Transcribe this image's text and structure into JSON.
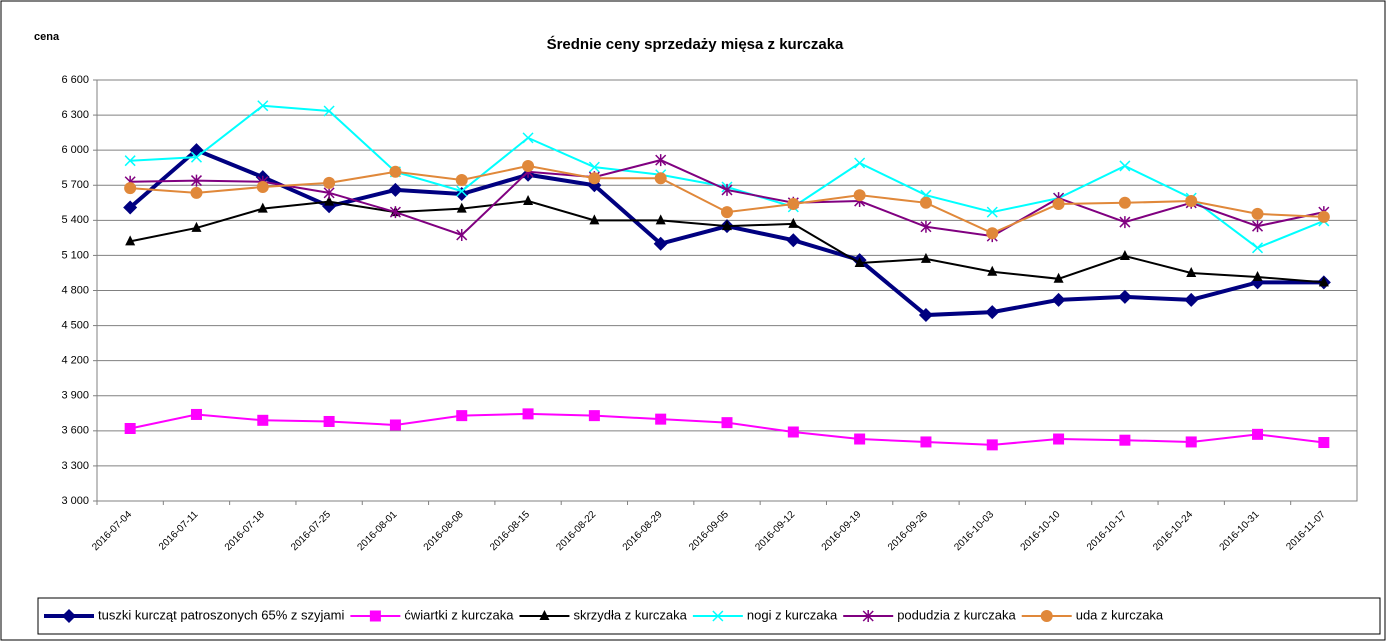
{
  "chart_data": {
    "type": "line",
    "title": "Średnie ceny sprzedaży mięsa z kurczaka",
    "y_label": "cena",
    "categories": [
      "2016-07-04",
      "2016-07-11",
      "2016-07-18",
      "2016-07-25",
      "2016-08-01",
      "2016-08-08",
      "2016-08-15",
      "2016-08-22",
      "2016-08-29",
      "2016-09-05",
      "2016-09-12",
      "2016-09-19",
      "2016-09-26",
      "2016-10-03",
      "2016-10-10",
      "2016-10-17",
      "2016-10-24",
      "2016-10-31",
      "2016-11-07"
    ],
    "series": [
      {
        "name": "tuszki kurcząt patroszonych 65% z szyjami",
        "color": "#000080",
        "marker": "diamond",
        "values": [
          5510,
          6000,
          5770,
          5520,
          5660,
          5625,
          5790,
          5700,
          5200,
          5350,
          5230,
          5060,
          4590,
          4615,
          4720,
          4745,
          4720,
          4870,
          4870
        ]
      },
      {
        "name": "ćwiartki z kurczaka",
        "color": "#ff00ff",
        "marker": "square",
        "values": [
          3620,
          3740,
          3690,
          3680,
          3650,
          3730,
          3745,
          3730,
          3700,
          3670,
          3590,
          3530,
          3505,
          3480,
          3530,
          3520,
          3505,
          3570,
          3500
        ]
      },
      {
        "name": "skrzydła z kurczaka",
        "color": "#000000",
        "marker": "triangle",
        "values": [
          5220,
          5335,
          5500,
          5560,
          5470,
          5500,
          5565,
          5400,
          5400,
          5350,
          5370,
          5035,
          5070,
          4960,
          4900,
          5095,
          4950,
          4915,
          4870
        ]
      },
      {
        "name": "nogi z kurczaka",
        "color": "#00ffff",
        "marker": "x",
        "values": [
          5910,
          5940,
          6380,
          6335,
          5815,
          5650,
          6105,
          5855,
          5790,
          5685,
          5515,
          5890,
          5615,
          5470,
          5590,
          5865,
          5590,
          5165,
          5395
        ]
      },
      {
        "name": "podudzia z kurczaka",
        "color": "#800080",
        "marker": "star",
        "values": [
          5730,
          5740,
          5730,
          5635,
          5470,
          5275,
          5815,
          5770,
          5915,
          5660,
          5550,
          5565,
          5345,
          5265,
          5590,
          5385,
          5550,
          5350,
          5470
        ]
      },
      {
        "name": "uda z kurczaka",
        "color": "#e0883a",
        "marker": "circle",
        "values": [
          5675,
          5635,
          5685,
          5720,
          5815,
          5745,
          5865,
          5760,
          5760,
          5470,
          5540,
          5615,
          5550,
          5290,
          5540,
          5550,
          5565,
          5455,
          5430
        ]
      }
    ],
    "ylim": [
      3000,
      6600
    ],
    "yticks": [
      {
        "value": 3000,
        "label": "3 000"
      },
      {
        "value": 3300,
        "label": "3 300"
      },
      {
        "value": 3600,
        "label": "3 600"
      },
      {
        "value": 3900,
        "label": "3 900"
      },
      {
        "value": 4200,
        "label": "4 200"
      },
      {
        "value": 4500,
        "label": "4 500"
      },
      {
        "value": 4800,
        "label": "4 800"
      },
      {
        "value": 5100,
        "label": "5 100"
      },
      {
        "value": 5400,
        "label": "5 400"
      },
      {
        "value": 5700,
        "label": "5 700"
      },
      {
        "value": 6000,
        "label": "6 000"
      },
      {
        "value": 6300,
        "label": "6 300"
      },
      {
        "value": 6600,
        "label": "6 600"
      }
    ],
    "grid": true,
    "legend": "bottom"
  }
}
